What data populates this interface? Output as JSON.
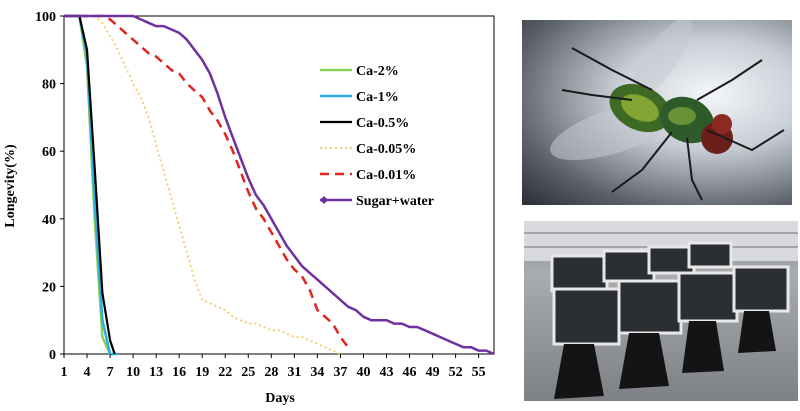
{
  "chart_data": {
    "type": "line",
    "title": "",
    "xlabel": "Days",
    "ylabel": "Longevity(%)",
    "xlim": [
      1,
      57
    ],
    "ylim": [
      0,
      100
    ],
    "x_ticks": [
      "1",
      "4",
      "7",
      "10",
      "13",
      "16",
      "19",
      "22",
      "25",
      "28",
      "31",
      "34",
      "37",
      "40",
      "43",
      "46",
      "49",
      "52",
      "55"
    ],
    "y_ticks": [
      "0",
      "20",
      "40",
      "60",
      "80",
      "100"
    ],
    "legend_position": "top-right",
    "series": [
      {
        "name": "Ca-2%",
        "color": "#8dcf5a",
        "dash": "solid",
        "x": [
          1,
          3,
          4,
          5,
          6,
          7,
          8
        ],
        "y": [
          100,
          100,
          85,
          40,
          5,
          0,
          0
        ]
      },
      {
        "name": "Ca-1%",
        "color": "#2ab0e0",
        "dash": "solid",
        "x": [
          1,
          3,
          4,
          5,
          6,
          7,
          8
        ],
        "y": [
          100,
          100,
          88,
          45,
          10,
          0,
          0
        ]
      },
      {
        "name": "Ca-0.5%",
        "color": "#000000",
        "dash": "solid",
        "x": [
          1,
          3,
          4,
          5,
          6,
          7,
          7.6
        ],
        "y": [
          100,
          100,
          90,
          55,
          18,
          4,
          0
        ]
      },
      {
        "name": "Ca-0.05%",
        "color": "#f5c86a",
        "dash": "dotted",
        "x": [
          1,
          5,
          6,
          7,
          8,
          9,
          10,
          11,
          12,
          13,
          14,
          15,
          16,
          17,
          18,
          19,
          20,
          21,
          22,
          23,
          24,
          25,
          26,
          27,
          28,
          29,
          30,
          31,
          32,
          33,
          34,
          35,
          36,
          37
        ],
        "y": [
          100,
          100,
          98,
          94,
          90,
          85,
          80,
          76,
          70,
          62,
          54,
          46,
          38,
          30,
          22,
          16,
          15,
          14,
          13,
          11,
          10,
          9,
          9,
          8,
          7,
          7,
          6,
          5,
          5,
          4,
          3,
          2,
          1,
          0
        ]
      },
      {
        "name": "Ca-0.01%",
        "color": "#e0241f",
        "dash": "dashed",
        "x": [
          1,
          6,
          7,
          8,
          9,
          10,
          11,
          12,
          13,
          14,
          15,
          16,
          17,
          18,
          19,
          20,
          21,
          22,
          23,
          24,
          25,
          26,
          27,
          28,
          29,
          30,
          31,
          32,
          33,
          34,
          35,
          36,
          37,
          38
        ],
        "y": [
          100,
          100,
          99,
          97,
          95,
          93,
          91,
          89,
          88,
          86,
          84,
          83,
          80,
          78,
          76,
          72,
          69,
          65,
          60,
          54,
          48,
          43,
          40,
          36,
          32,
          28,
          25,
          23,
          19,
          13,
          11,
          9,
          5,
          2
        ]
      },
      {
        "name": "Sugar+water",
        "color": "#7030a0",
        "dash": "solid",
        "x": [
          1,
          10,
          11,
          12,
          13,
          14,
          15,
          16,
          17,
          18,
          19,
          20,
          21,
          22,
          23,
          24,
          25,
          26,
          27,
          28,
          29,
          30,
          31,
          32,
          33,
          34,
          35,
          36,
          37,
          38,
          39,
          40,
          41,
          42,
          43,
          44,
          45,
          46,
          47,
          48,
          49,
          50,
          51,
          52,
          53,
          54,
          55,
          56,
          57
        ],
        "y": [
          100,
          100,
          99,
          98,
          97,
          97,
          96,
          95,
          93,
          90,
          87,
          83,
          77,
          70,
          64,
          58,
          52,
          47,
          44,
          40,
          36,
          32,
          29,
          26,
          24,
          22,
          20,
          18,
          16,
          14,
          13,
          11,
          10,
          10,
          10,
          9,
          9,
          8,
          8,
          7,
          6,
          5,
          4,
          3,
          2,
          2,
          1,
          1,
          0
        ]
      }
    ]
  },
  "photos": {
    "fly": "green-bottle-fly-photo",
    "cages": "mesh-cage-photo"
  }
}
